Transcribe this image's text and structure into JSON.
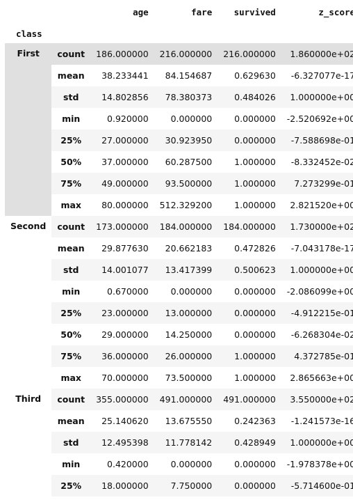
{
  "columns": [
    "age",
    "fare",
    "survived",
    "z_score"
  ],
  "index_name": "class",
  "groups": [
    {
      "name": "First",
      "rows": [
        {
          "stat": "count",
          "age": "186.000000",
          "fare": "216.000000",
          "survived": "216.000000",
          "z_score": "1.860000e+02"
        },
        {
          "stat": "mean",
          "age": "38.233441",
          "fare": "84.154687",
          "survived": "0.629630",
          "z_score": "-6.327077e-17"
        },
        {
          "stat": "std",
          "age": "14.802856",
          "fare": "78.380373",
          "survived": "0.484026",
          "z_score": "1.000000e+00"
        },
        {
          "stat": "min",
          "age": "0.920000",
          "fare": "0.000000",
          "survived": "0.000000",
          "z_score": "-2.520692e+00"
        },
        {
          "stat": "25%",
          "age": "27.000000",
          "fare": "30.923950",
          "survived": "0.000000",
          "z_score": "-7.588698e-01"
        },
        {
          "stat": "50%",
          "age": "37.000000",
          "fare": "60.287500",
          "survived": "1.000000",
          "z_score": "-8.332452e-02"
        },
        {
          "stat": "75%",
          "age": "49.000000",
          "fare": "93.500000",
          "survived": "1.000000",
          "z_score": "7.273299e-01"
        },
        {
          "stat": "max",
          "age": "80.000000",
          "fare": "512.329200",
          "survived": "1.000000",
          "z_score": "2.821520e+00"
        }
      ]
    },
    {
      "name": "Second",
      "rows": [
        {
          "stat": "count",
          "age": "173.000000",
          "fare": "184.000000",
          "survived": "184.000000",
          "z_score": "1.730000e+02"
        },
        {
          "stat": "mean",
          "age": "29.877630",
          "fare": "20.662183",
          "survived": "0.472826",
          "z_score": "-7.043178e-17"
        },
        {
          "stat": "std",
          "age": "14.001077",
          "fare": "13.417399",
          "survived": "0.500623",
          "z_score": "1.000000e+00"
        },
        {
          "stat": "min",
          "age": "0.670000",
          "fare": "0.000000",
          "survived": "0.000000",
          "z_score": "-2.086099e+00"
        },
        {
          "stat": "25%",
          "age": "23.000000",
          "fare": "13.000000",
          "survived": "0.000000",
          "z_score": "-4.912215e-01"
        },
        {
          "stat": "50%",
          "age": "29.000000",
          "fare": "14.250000",
          "survived": "0.000000",
          "z_score": "-6.268304e-02"
        },
        {
          "stat": "75%",
          "age": "36.000000",
          "fare": "26.000000",
          "survived": "1.000000",
          "z_score": "4.372785e-01"
        },
        {
          "stat": "max",
          "age": "70.000000",
          "fare": "73.500000",
          "survived": "1.000000",
          "z_score": "2.865663e+00"
        }
      ]
    },
    {
      "name": "Third",
      "rows": [
        {
          "stat": "count",
          "age": "355.000000",
          "fare": "491.000000",
          "survived": "491.000000",
          "z_score": "3.550000e+02"
        },
        {
          "stat": "mean",
          "age": "25.140620",
          "fare": "13.675550",
          "survived": "0.242363",
          "z_score": "-1.241573e-16"
        },
        {
          "stat": "std",
          "age": "12.495398",
          "fare": "11.778142",
          "survived": "0.428949",
          "z_score": "1.000000e+00"
        },
        {
          "stat": "min",
          "age": "0.420000",
          "fare": "0.000000",
          "survived": "0.000000",
          "z_score": "-1.978378e+00"
        },
        {
          "stat": "25%",
          "age": "18.000000",
          "fare": "7.750000",
          "survived": "0.000000",
          "z_score": "-5.714600e-01"
        }
      ]
    }
  ],
  "highlight": {
    "group": "First",
    "row": "count"
  }
}
